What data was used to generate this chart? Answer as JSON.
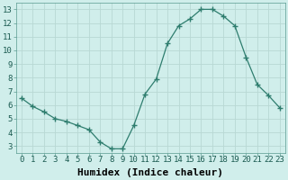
{
  "x": [
    0,
    1,
    2,
    3,
    4,
    5,
    6,
    7,
    8,
    9,
    10,
    11,
    12,
    13,
    14,
    15,
    16,
    17,
    18,
    19,
    20,
    21,
    22,
    23
  ],
  "y": [
    6.5,
    5.9,
    5.5,
    5.0,
    4.8,
    4.5,
    4.2,
    3.3,
    2.8,
    2.8,
    4.5,
    6.8,
    7.9,
    10.5,
    11.8,
    12.3,
    13.0,
    13.0,
    12.5,
    11.8,
    9.5,
    7.5,
    6.7,
    5.8
  ],
  "xlabel": "Humidex (Indice chaleur)",
  "ylim": [
    2.5,
    13.5
  ],
  "xlim": [
    -0.5,
    23.5
  ],
  "yticks": [
    3,
    4,
    5,
    6,
    7,
    8,
    9,
    10,
    11,
    12,
    13
  ],
  "xticks": [
    0,
    1,
    2,
    3,
    4,
    5,
    6,
    7,
    8,
    9,
    10,
    11,
    12,
    13,
    14,
    15,
    16,
    17,
    18,
    19,
    20,
    21,
    22,
    23
  ],
  "line_color": "#2e7d6e",
  "marker": "+",
  "marker_size": 4.0,
  "bg_color": "#d0eeeb",
  "grid_color": "#b8d8d4",
  "label_fontsize": 7.5,
  "tick_fontsize": 6.5,
  "xlabel_fontsize": 8
}
